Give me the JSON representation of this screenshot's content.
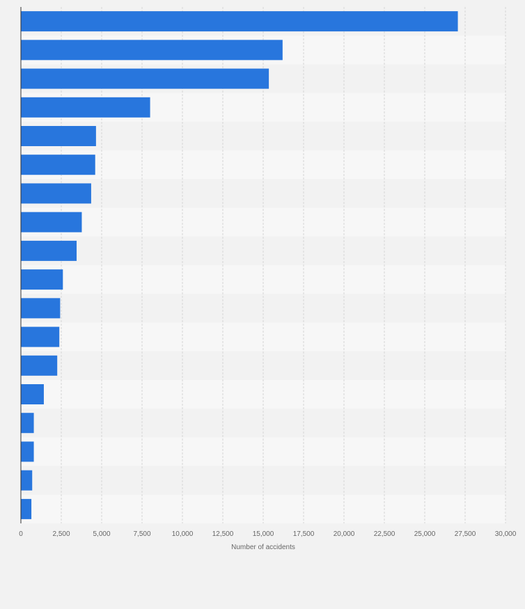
{
  "chart_data": {
    "type": "bar",
    "orientation": "horizontal",
    "categories": [
      "",
      "",
      "",
      "",
      "",
      "",
      "",
      "",
      "",
      "",
      "",
      "",
      "",
      "",
      "",
      "",
      "",
      ""
    ],
    "values": [
      27050,
      16200,
      15350,
      8000,
      4650,
      4600,
      4350,
      3770,
      3450,
      2600,
      2430,
      2380,
      2250,
      1420,
      800,
      800,
      700,
      650
    ],
    "xlabel": "Number of accidents",
    "ylabel": "",
    "xlim": [
      0,
      30000
    ],
    "xticks": [
      0,
      2500,
      5000,
      7500,
      10000,
      12500,
      15000,
      17500,
      20000,
      22500,
      25000,
      27500,
      30000
    ],
    "xtick_labels": [
      "0",
      "2,500",
      "5,000",
      "7,500",
      "10,000",
      "12,500",
      "15,000",
      "17,500",
      "20,000",
      "22,500",
      "25,000",
      "27,500",
      "30,000"
    ],
    "grid": true,
    "colors": {
      "bar": "#2876dd",
      "band_light": "#f7f7f7",
      "band_dark": "#f2f2f2",
      "grid": "#d6d6d6",
      "axis": "#333333",
      "tick_text": "#666666"
    }
  }
}
